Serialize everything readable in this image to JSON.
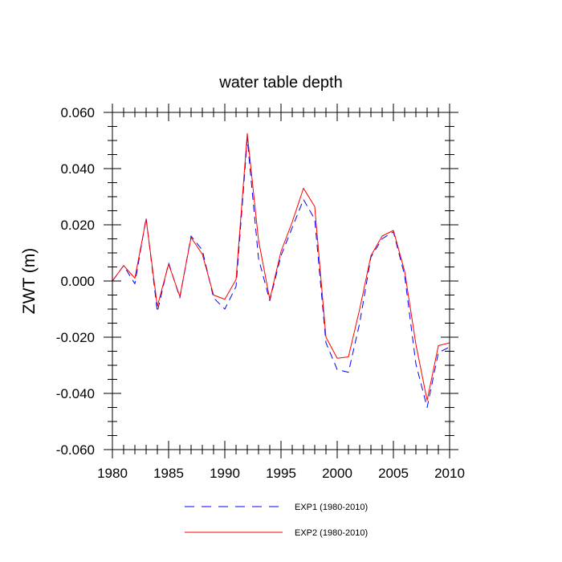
{
  "chart_data": {
    "type": "line",
    "title": "water table depth",
    "xlabel": "",
    "ylabel": "ZWT  (m)",
    "xlim": [
      1980,
      2010
    ],
    "ylim": [
      -0.06,
      0.06
    ],
    "x_ticks": [
      1980,
      1985,
      1990,
      1995,
      2000,
      2005,
      2010
    ],
    "x_tick_labels": [
      "1980",
      "1985",
      "1990",
      "1995",
      "2000",
      "2005",
      "2010"
    ],
    "y_ticks": [
      0.06,
      0.04,
      0.02,
      0.0,
      -0.02,
      -0.04,
      -0.06
    ],
    "y_tick_labels": [
      "0.060",
      "0.040",
      "0.020",
      "0.000",
      "-0.020",
      "-0.040",
      "-0.060"
    ],
    "grid": false,
    "legend_position": "bottom-center",
    "x": [
      1980,
      1981,
      1982,
      1983,
      1984,
      1985,
      1986,
      1987,
      1988,
      1989,
      1990,
      1991,
      1992,
      1993,
      1994,
      1995,
      1996,
      1997,
      1998,
      1999,
      2000,
      2001,
      2002,
      2003,
      2004,
      2005,
      2006,
      2007,
      2008,
      2009,
      2010
    ],
    "series": [
      {
        "name": "EXP1 (1980-2010)",
        "color": "#0000ff",
        "dash": "dashed",
        "values": [
          0.0,
          0.0055,
          -0.001,
          0.0225,
          -0.011,
          0.0065,
          -0.006,
          0.016,
          0.011,
          -0.006,
          -0.01,
          -0.002,
          0.0505,
          0.008,
          -0.007,
          0.009,
          0.019,
          0.029,
          0.022,
          -0.022,
          -0.0315,
          -0.0325,
          -0.015,
          0.0085,
          0.015,
          0.0175,
          0.002,
          -0.0295,
          -0.045,
          -0.0255,
          -0.0235
        ]
      },
      {
        "name": "EXP2 (1980-2010)",
        "color": "#ff0000",
        "dash": "solid",
        "values": [
          0.0,
          0.0055,
          0.001,
          0.022,
          -0.009,
          0.006,
          -0.0055,
          0.0155,
          0.0095,
          -0.005,
          -0.0065,
          0.0005,
          0.0525,
          0.0145,
          -0.0065,
          0.0105,
          0.021,
          0.033,
          0.0265,
          -0.02,
          -0.0275,
          -0.027,
          -0.01,
          0.009,
          0.016,
          0.018,
          0.0035,
          -0.0225,
          -0.0425,
          -0.023,
          -0.022
        ]
      }
    ]
  }
}
